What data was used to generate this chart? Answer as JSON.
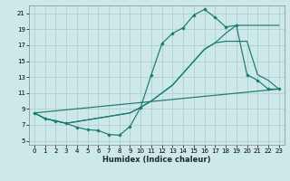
{
  "xlabel": "Humidex (Indice chaleur)",
  "background_color": "#cce8e8",
  "grid_color": "#aacccc",
  "line_color": "#1a7a6e",
  "xlim": [
    -0.5,
    23.5
  ],
  "ylim": [
    4.5,
    22.0
  ],
  "xticks": [
    0,
    1,
    2,
    3,
    4,
    5,
    6,
    7,
    8,
    9,
    10,
    11,
    12,
    13,
    14,
    15,
    16,
    17,
    18,
    19,
    20,
    21,
    22,
    23
  ],
  "yticks": [
    5,
    7,
    9,
    11,
    13,
    15,
    17,
    19,
    21
  ],
  "curve1_x": [
    0,
    1,
    2,
    3,
    4,
    5,
    6,
    7,
    8,
    9,
    10,
    11,
    12,
    13,
    14,
    15,
    16,
    17,
    18,
    19,
    20,
    21,
    22,
    23
  ],
  "curve1_y": [
    8.5,
    7.8,
    7.5,
    7.2,
    6.7,
    6.4,
    6.3,
    5.8,
    5.7,
    6.8,
    9.2,
    13.3,
    17.2,
    18.5,
    19.2,
    20.8,
    21.5,
    20.5,
    19.3,
    19.5,
    13.3,
    12.6,
    11.5,
    11.5
  ],
  "curve2_x": [
    0,
    1,
    2,
    3,
    9,
    10,
    11,
    12,
    13,
    14,
    15,
    16,
    17,
    18,
    19,
    20,
    21,
    22,
    23
  ],
  "curve2_y": [
    8.5,
    7.8,
    7.5,
    7.2,
    8.5,
    9.2,
    10.0,
    11.0,
    12.0,
    13.5,
    15.0,
    16.5,
    17.3,
    18.5,
    19.5,
    19.5,
    19.5,
    19.5,
    19.5
  ],
  "curve3_x": [
    0,
    1,
    2,
    3,
    9,
    10,
    11,
    12,
    13,
    14,
    15,
    16,
    17,
    18,
    19,
    20,
    21,
    22,
    23
  ],
  "curve3_y": [
    8.5,
    7.8,
    7.5,
    7.2,
    8.5,
    9.2,
    10.0,
    11.0,
    12.0,
    13.5,
    15.0,
    16.5,
    17.3,
    17.5,
    17.5,
    17.5,
    13.3,
    12.6,
    11.5
  ],
  "curve4_x": [
    0,
    23
  ],
  "curve4_y": [
    8.5,
    11.5
  ]
}
